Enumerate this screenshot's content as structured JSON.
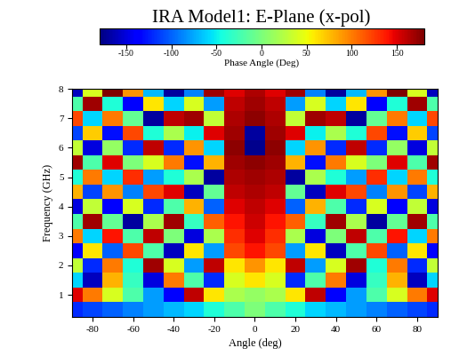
{
  "chart_data": {
    "type": "heatmap",
    "title": "IRA Model1: E-Plane (x-pol)",
    "x_label": "Angle (deg)",
    "y_label": "Frequency (GHz)",
    "xlim": [
      -90,
      90
    ],
    "xticks": [
      -80,
      -60,
      -40,
      -20,
      0,
      20,
      40,
      60,
      80
    ],
    "ylim": [
      0.25,
      8
    ],
    "yticks": [
      1,
      2,
      3,
      4,
      5,
      6,
      7,
      8
    ],
    "x": [
      -90,
      -80,
      -70,
      -60,
      -50,
      -40,
      -30,
      -20,
      -10,
      0,
      10,
      20,
      30,
      40,
      50,
      60,
      70,
      80,
      90
    ],
    "y": [
      0.5,
      1.0,
      1.5,
      2.0,
      2.5,
      3.0,
      3.5,
      4.0,
      4.5,
      5.0,
      5.5,
      6.0,
      6.5,
      7.0,
      7.5,
      8.0
    ],
    "cells": [
      [
        -120,
        -110,
        -100,
        -90,
        -80,
        -70,
        -60,
        -40,
        -20,
        0,
        -20,
        -40,
        -60,
        -70,
        -80,
        -90,
        -100,
        -110,
        -120
      ],
      [
        150,
        100,
        40,
        -20,
        -80,
        -140,
        160,
        60,
        20,
        10,
        20,
        60,
        160,
        -140,
        -80,
        -20,
        40,
        100,
        150
      ],
      [
        -60,
        -160,
        80,
        -30,
        -150,
        100,
        -20,
        -120,
        40,
        60,
        40,
        -120,
        -20,
        100,
        -150,
        -30,
        80,
        -160,
        -60
      ],
      [
        30,
        -120,
        100,
        -40,
        170,
        40,
        -80,
        160,
        60,
        90,
        60,
        160,
        -80,
        40,
        170,
        -40,
        100,
        -120,
        30
      ],
      [
        -140,
        60,
        -100,
        120,
        -20,
        -160,
        60,
        -80,
        120,
        140,
        120,
        -80,
        60,
        -160,
        -20,
        120,
        -100,
        60,
        -140
      ],
      [
        100,
        -60,
        140,
        -20,
        160,
        0,
        -150,
        20,
        130,
        150,
        130,
        20,
        -150,
        0,
        160,
        -20,
        140,
        -60,
        100
      ],
      [
        -20,
        170,
        -10,
        -170,
        20,
        170,
        -30,
        110,
        140,
        155,
        140,
        110,
        -30,
        170,
        20,
        -170,
        -10,
        170,
        -20
      ],
      [
        -150,
        30,
        -140,
        40,
        -120,
        -20,
        80,
        -100,
        150,
        160,
        150,
        -100,
        80,
        -20,
        -120,
        40,
        -140,
        30,
        -150
      ],
      [
        80,
        -110,
        90,
        -90,
        120,
        150,
        -160,
        -10,
        160,
        165,
        160,
        -10,
        -160,
        150,
        120,
        -90,
        90,
        -110,
        80
      ],
      [
        -40,
        100,
        -60,
        130,
        -80,
        -40,
        20,
        -170,
        165,
        170,
        165,
        -170,
        20,
        -40,
        -80,
        130,
        -60,
        100,
        -40
      ],
      [
        170,
        -20,
        150,
        0,
        40,
        100,
        -130,
        80,
        170,
        175,
        170,
        80,
        -130,
        100,
        40,
        0,
        150,
        -20,
        170
      ],
      [
        30,
        -150,
        10,
        -120,
        160,
        -120,
        90,
        -60,
        175,
        -175,
        175,
        -60,
        90,
        -120,
        160,
        -120,
        10,
        -150,
        30
      ],
      [
        -110,
        70,
        -130,
        120,
        -40,
        20,
        -50,
        150,
        170,
        -170,
        170,
        150,
        -50,
        20,
        -40,
        120,
        -130,
        70,
        -110
      ],
      [
        120,
        -60,
        100,
        -10,
        -170,
        160,
        170,
        30,
        165,
        175,
        165,
        30,
        170,
        160,
        -170,
        -10,
        100,
        -60,
        120
      ],
      [
        -20,
        170,
        -40,
        -140,
        60,
        -60,
        40,
        -80,
        160,
        170,
        160,
        -80,
        40,
        -60,
        60,
        -140,
        -40,
        170,
        -20
      ],
      [
        -160,
        40,
        180,
        90,
        -70,
        -170,
        -90,
        170,
        150,
        165,
        150,
        170,
        -90,
        -170,
        -70,
        90,
        180,
        40,
        -160
      ]
    ],
    "colorbar": {
      "label": "Phase Angle (Deg)",
      "lim": [
        -180,
        180
      ],
      "ticks": [
        -150,
        -100,
        -50,
        0,
        50,
        100,
        150
      ]
    }
  }
}
